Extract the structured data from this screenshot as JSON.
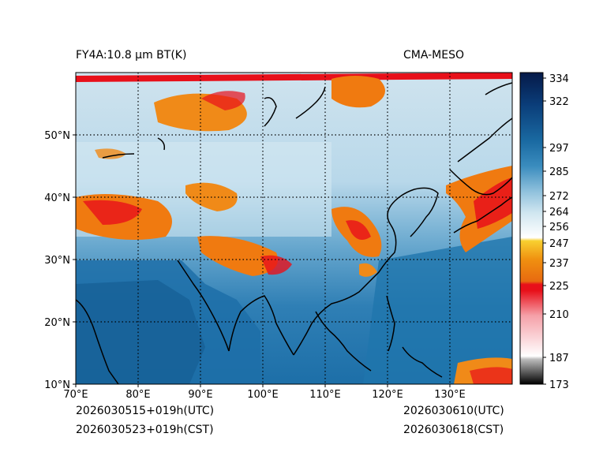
{
  "header": {
    "title": "FY4A:10.8 µm BT(K)",
    "source": "CMA-MESO"
  },
  "footer": {
    "init_utc": "2026030515+019h(UTC)",
    "init_cst": "2026030523+019h(CST)",
    "valid_utc": "2026030610(UTC)",
    "valid_cst": "2026030618(CST)"
  },
  "map": {
    "lon_range": [
      70,
      140
    ],
    "lat_range": [
      10,
      60
    ],
    "lon_ticks": [
      "70°E",
      "80°E",
      "90°E",
      "100°E",
      "110°E",
      "120°E",
      "130°E"
    ],
    "lat_ticks": [
      "10°N",
      "20°N",
      "30°N",
      "40°N",
      "50°N"
    ],
    "grid_style": "dotted"
  },
  "colorbar": {
    "min": 173,
    "max": 334,
    "tick_values": [
      173,
      187,
      210,
      225,
      237,
      247,
      256,
      264,
      272,
      285,
      297,
      322,
      334
    ],
    "tick_labels": [
      "173",
      "187",
      "210",
      "225",
      "237",
      "247",
      "256",
      "264",
      "272",
      "285",
      "297",
      "322",
      "334"
    ]
  },
  "colors": {
    "cold_cloud_orange": "#f07a10",
    "deep_cold_red": "#e8101a",
    "ocean_blue": "#1d6fa8",
    "warm_deep_navy": "#0a2458",
    "clear_light": "#d9ebf4"
  }
}
